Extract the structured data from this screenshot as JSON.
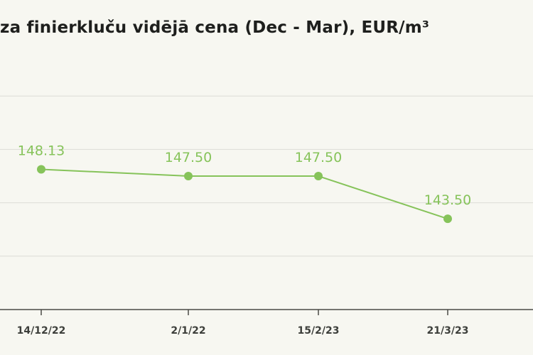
{
  "chart_data": {
    "type": "line",
    "title": "za finierkluču vidējā cena (Dec - Mar), EUR/m³",
    "categories": [
      "14/12/22",
      "2/1/22",
      "15/2/23",
      "21/3/23"
    ],
    "series": [
      {
        "values": [
          148.13,
          147.5,
          147.5,
          143.5
        ],
        "labels": [
          "148.13",
          "147.50",
          "147.50",
          "143.50"
        ],
        "color": "#86c35a"
      }
    ],
    "ylim": [
      135,
      160
    ],
    "grid_values": [
      140,
      145,
      150,
      155
    ],
    "grid": true,
    "legend": "none"
  },
  "colors": {
    "background": "#f7f7f1",
    "grid": "#dcdcd6",
    "axis": "#4a4a46",
    "line": "#86c35a",
    "label": "#86c35a"
  }
}
